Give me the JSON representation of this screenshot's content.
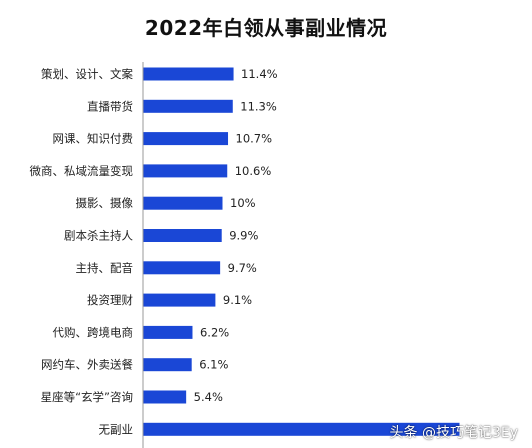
{
  "chart_data": {
    "type": "bar",
    "orientation": "horizontal",
    "title": "2022年白领从事副业情况",
    "categories": [
      "策划、设计、文案",
      "直播带货",
      "网课、知识付费",
      "微商、私域流量变现",
      "摄影、摄像",
      "剧本杀主持人",
      "主持、配音",
      "投资理财",
      "代购、跨境电商",
      "网约车、外卖送餐",
      "星座等“玄学”咨询",
      "无副业"
    ],
    "values": [
      11.4,
      11.3,
      10.7,
      10.6,
      10.0,
      9.9,
      9.7,
      9.1,
      6.2,
      6.1,
      5.4,
      40.0
    ],
    "value_labels": [
      "11.4%",
      "11.3%",
      "10.7%",
      "10.6%",
      "10%",
      "9.9%",
      "9.7%",
      "9.1%",
      "6.2%",
      "6.1%",
      "5.4%",
      ""
    ],
    "bar_color": "#1a47d6",
    "axis_color": "#9a9a9a"
  },
  "watermark": "头条 @技巧笔记3Ey"
}
